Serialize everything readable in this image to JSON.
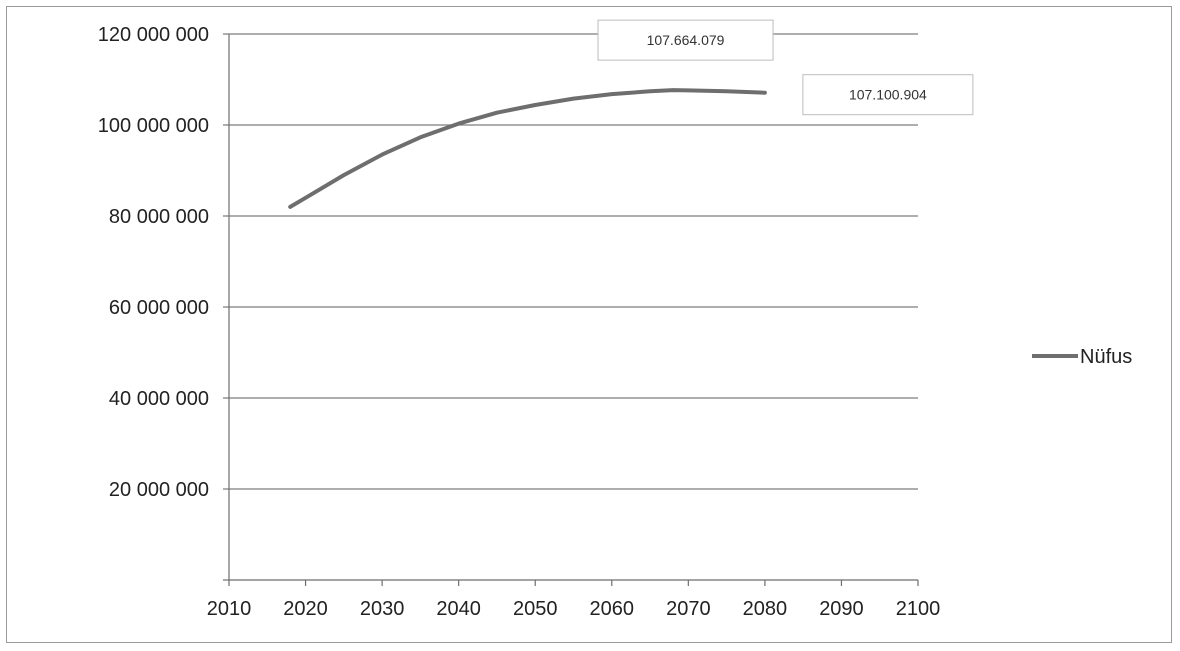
{
  "chart_data": {
    "type": "line",
    "title": "",
    "xlabel": "",
    "ylabel": "",
    "xlim": [
      2010,
      2100
    ],
    "ylim": [
      0,
      120000000
    ],
    "x_ticks": [
      "2010",
      "2020",
      "2030",
      "2040",
      "2050",
      "2060",
      "2070",
      "2080",
      "2090",
      "2100"
    ],
    "y_ticks": [
      "20 000 000",
      "40 000 000",
      "60 000 000",
      "80 000 000",
      "100 000 000",
      "120 000 000"
    ],
    "grid": true,
    "legend": "right",
    "series": [
      {
        "name": "Nüfus",
        "color": "#6e6e6e",
        "points": [
          [
            2018,
            82000000
          ],
          [
            2020,
            84000000
          ],
          [
            2025,
            89000000
          ],
          [
            2030,
            93500000
          ],
          [
            2035,
            97300000
          ],
          [
            2040,
            100300000
          ],
          [
            2045,
            102700000
          ],
          [
            2050,
            104400000
          ],
          [
            2055,
            105800000
          ],
          [
            2060,
            106800000
          ],
          [
            2065,
            107400000
          ],
          [
            2068,
            107664079
          ],
          [
            2070,
            107600000
          ],
          [
            2075,
            107400000
          ],
          [
            2080,
            107100904
          ]
        ]
      }
    ],
    "annotations": [
      {
        "text": "107.664.079",
        "x": 2068,
        "y": 107664079
      },
      {
        "text": "107.100.904",
        "x": 2080,
        "y": 107100904
      }
    ]
  }
}
